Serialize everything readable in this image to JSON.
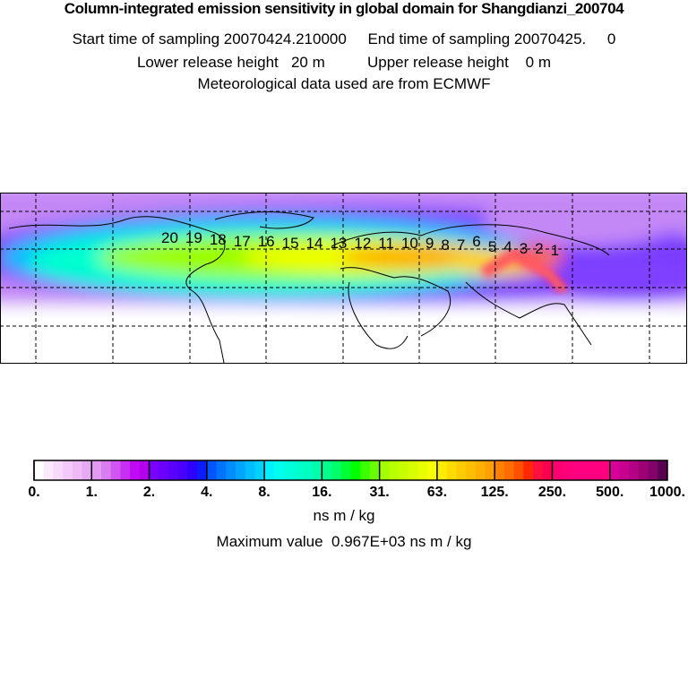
{
  "header": {
    "title": "Column-integrated emission sensitivity in global domain for Shangdianzi_200704",
    "sampling": "Start time of sampling 20070424.210000     End time of sampling 20070425.     0",
    "release": "Lower release height   20 m          Upper release height    0 m",
    "met": "Meteorological data used are from ECMWF"
  },
  "map": {
    "trajectory_labels": [
      "20",
      "19",
      "18",
      "17",
      "16",
      "15",
      "14",
      "13",
      "12",
      "11",
      "10",
      "9",
      "8",
      "7",
      "6",
      "5",
      "4",
      "3",
      "2",
      "1"
    ]
  },
  "colorbar": {
    "tick_labels": [
      "0.",
      "1.",
      "2.",
      "4.",
      "8.",
      "16.",
      "31.",
      "63.",
      "125.",
      "250.",
      "500.",
      "1000."
    ],
    "colors": [
      [
        "#ffffff",
        "#fbeafd",
        "#f7dafb",
        "#f3c9f9",
        "#eebbf7",
        "#e8a9f3"
      ],
      [
        "#e29af2",
        "#da7cf2",
        "#d155f3",
        "#c82ff4",
        "#c00af5",
        "#b400ef"
      ],
      [
        "#7a00ff",
        "#6a00ff",
        "#5a00ff",
        "#4a00ff",
        "#2d00ff",
        "#0a1dff"
      ],
      [
        "#0055ff",
        "#0073ff",
        "#008dff",
        "#00a5ff",
        "#00bdff",
        "#00d2ff"
      ],
      [
        "#00f0ff",
        "#00ffee",
        "#00ffde",
        "#00ffcf",
        "#00ffc0",
        "#00ffad"
      ],
      [
        "#00ff8c",
        "#00ff6a",
        "#00ff35",
        "#00ff00",
        "#3cff00",
        "#69ff00"
      ],
      [
        "#a4ff00",
        "#b8ff00",
        "#c8ff00",
        "#d8ff00",
        "#e8ff00",
        "#f8ff00"
      ],
      [
        "#ffec00",
        "#ffdb00",
        "#ffcc00",
        "#ffbe00",
        "#ffb000",
        "#ffa000"
      ],
      [
        "#ff8000",
        "#ff6c00",
        "#ff5000",
        "#ff2800",
        "#ff1040",
        "#ff0050"
      ],
      [
        "#ff0070",
        "#ff0078",
        "#ff0080",
        "#ff0080",
        "#ff0080",
        "#ff0080"
      ],
      [
        "#d8009a",
        "#c8008e",
        "#b40084",
        "#9c0074",
        "#84006a",
        "#5a0050"
      ]
    ],
    "unit": "ns m / kg",
    "max_value": "Maximum value  0.967E+03 ns m / kg"
  }
}
